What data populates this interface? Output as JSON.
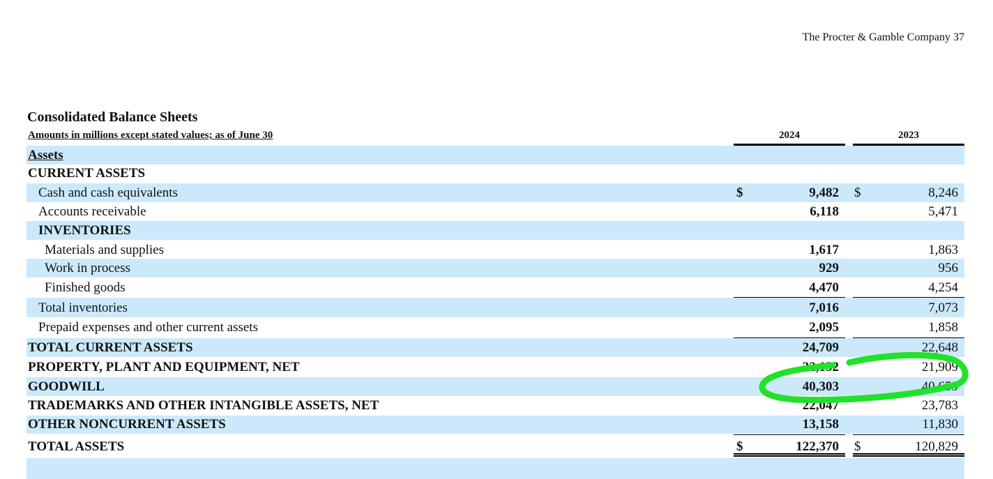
{
  "page_header": "The Procter & Gamble Company 37",
  "title": "Consolidated Balance Sheets",
  "subtitle": "Amounts in millions except stated values; as of June 30",
  "columns": [
    "2024",
    "2023"
  ],
  "rows": [
    {
      "label": "Assets",
      "v2024": "",
      "v2023": "",
      "dollar1": "",
      "dollar2": ""
    },
    {
      "label": "CURRENT ASSETS",
      "v2024": "",
      "v2023": "",
      "dollar1": "",
      "dollar2": ""
    },
    {
      "label": "Cash and cash equivalents",
      "v2024": "9,482",
      "v2023": "8,246",
      "dollar1": "$",
      "dollar2": "$"
    },
    {
      "label": "Accounts receivable",
      "v2024": "6,118",
      "v2023": "5,471",
      "dollar1": "",
      "dollar2": ""
    },
    {
      "label": "INVENTORIES",
      "v2024": "",
      "v2023": "",
      "dollar1": "",
      "dollar2": ""
    },
    {
      "label": "Materials and supplies",
      "v2024": "1,617",
      "v2023": "1,863",
      "dollar1": "",
      "dollar2": ""
    },
    {
      "label": "Work in process",
      "v2024": "929",
      "v2023": "956",
      "dollar1": "",
      "dollar2": ""
    },
    {
      "label": "Finished goods",
      "v2024": "4,470",
      "v2023": "4,254",
      "dollar1": "",
      "dollar2": ""
    },
    {
      "label": "Total inventories",
      "v2024": "7,016",
      "v2023": "7,073",
      "dollar1": "",
      "dollar2": ""
    },
    {
      "label": "Prepaid expenses and other current assets",
      "v2024": "2,095",
      "v2023": "1,858",
      "dollar1": "",
      "dollar2": ""
    },
    {
      "label": "TOTAL CURRENT ASSETS",
      "v2024": "24,709",
      "v2023": "22,648",
      "dollar1": "",
      "dollar2": ""
    },
    {
      "label": "PROPERTY, PLANT AND EQUIPMENT, NET",
      "v2024": "22,152",
      "v2023": "21,909",
      "dollar1": "",
      "dollar2": ""
    },
    {
      "label": "GOODWILL",
      "v2024": "40,303",
      "v2023": "40,659",
      "dollar1": "",
      "dollar2": ""
    },
    {
      "label": "TRADEMARKS AND OTHER INTANGIBLE ASSETS, NET",
      "v2024": "22,047",
      "v2023": "23,783",
      "dollar1": "",
      "dollar2": ""
    },
    {
      "label": "OTHER NONCURRENT ASSETS",
      "v2024": "13,158",
      "v2023": "11,830",
      "dollar1": "",
      "dollar2": ""
    },
    {
      "label": "TOTAL ASSETS",
      "v2024": "122,370",
      "v2023": "120,829",
      "dollar1": "$",
      "dollar2": "$"
    }
  ],
  "colors": {
    "band": "#cce9fb",
    "annotation": "#22e12b"
  }
}
